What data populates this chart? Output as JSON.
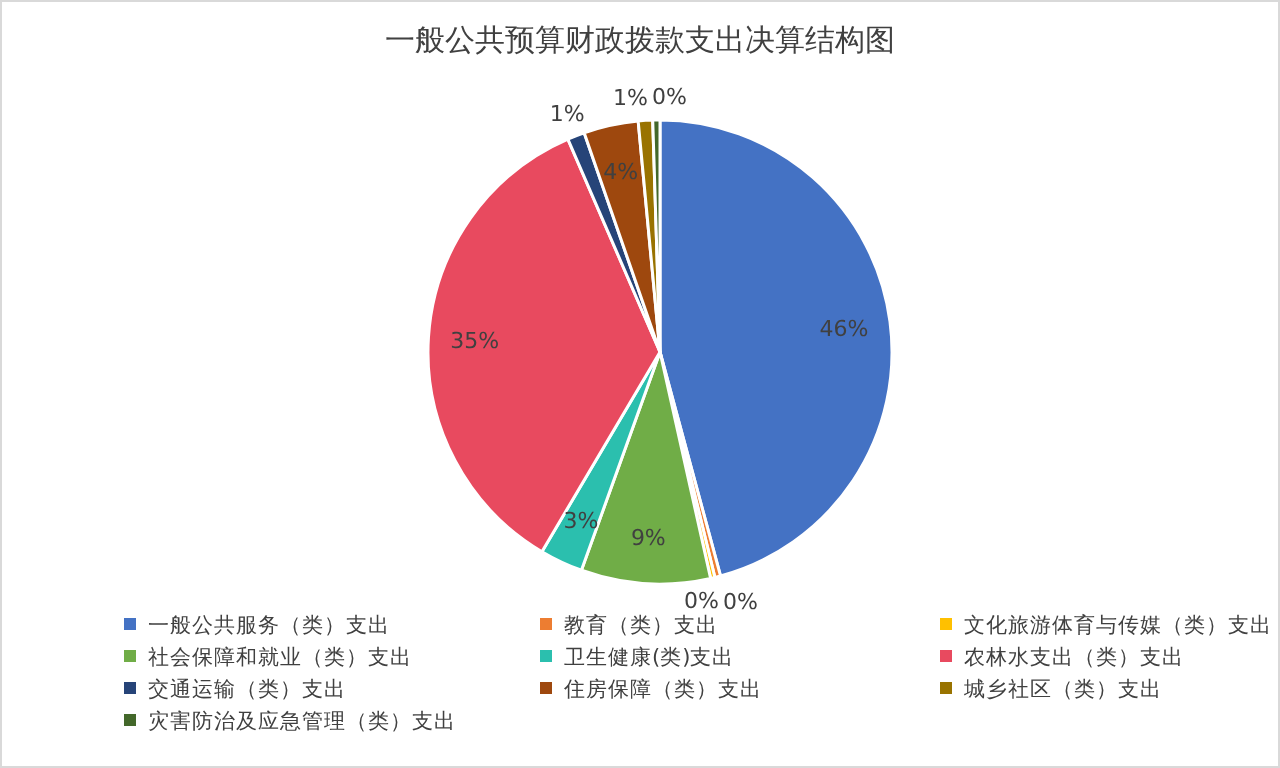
{
  "chart_data": {
    "type": "pie",
    "title": "一般公共预算财政拨款支出决算结构图",
    "categories": [
      "一般公共服务（类）支出",
      "教育（类）支出",
      "文化旅游体育与传媒（类）支出",
      "社会保障和就业（类）支出",
      "卫生健康(类)支出",
      "农林水支出（类）支出",
      "交通运输（类）支出",
      "住房保障（类）支出",
      "城乡社区（类）支出",
      "灾害防治及应急管理（类）支出"
    ],
    "values": [
      45.8,
      0.4,
      0.3,
      9,
      3,
      35,
      1.2,
      3.8,
      1,
      0.5
    ],
    "value_labels": [
      "46%",
      "0%",
      "0%",
      "9%",
      "3%",
      "35%",
      "1%",
      "4%",
      "1%",
      "0%"
    ],
    "colors": [
      "#4472c4",
      "#ed7d31",
      "#ffc000",
      "#70ad47",
      "#2bbfae",
      "#e84a5f",
      "#264478",
      "#9e480e",
      "#997300",
      "#43682b"
    ],
    "legend": "bottom"
  }
}
